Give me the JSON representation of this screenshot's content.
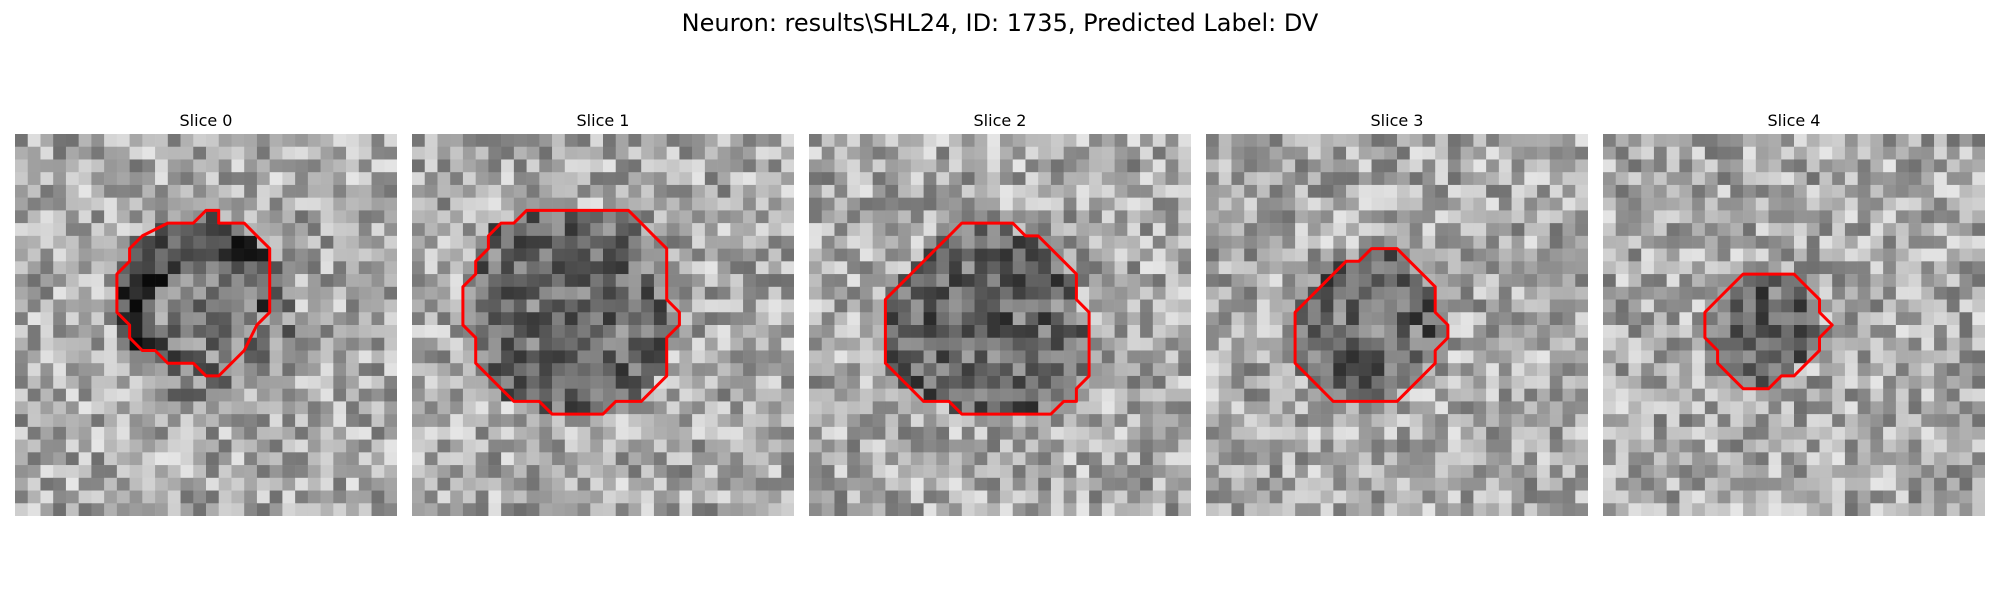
{
  "figure": {
    "title": "Neuron: results\\SHL24, ID: 1735, Predicted Label: DV"
  },
  "panels": [
    {
      "title": "Slice 0",
      "contour": [
        [
          16,
          7
        ],
        [
          18,
          7
        ],
        [
          19,
          8
        ],
        [
          20,
          9
        ],
        [
          20,
          14
        ],
        [
          19,
          15
        ],
        [
          18,
          17
        ],
        [
          17,
          18
        ],
        [
          16,
          19
        ],
        [
          15,
          19
        ],
        [
          14,
          18
        ],
        [
          12,
          18
        ],
        [
          11,
          17
        ],
        [
          10,
          17
        ],
        [
          9,
          16
        ],
        [
          9,
          15
        ],
        [
          8,
          14
        ],
        [
          8,
          11
        ],
        [
          9,
          10
        ],
        [
          9,
          9
        ],
        [
          10,
          8
        ],
        [
          12,
          7
        ],
        [
          14,
          7
        ],
        [
          15,
          6
        ],
        [
          16,
          6
        ]
      ],
      "dark_mask_seed": 0
    },
    {
      "title": "Slice 1",
      "contour": [
        [
          11,
          6
        ],
        [
          13,
          6
        ],
        [
          17,
          6
        ],
        [
          18,
          7
        ],
        [
          19,
          8
        ],
        [
          20,
          9
        ],
        [
          20,
          13
        ],
        [
          21,
          14
        ],
        [
          21,
          15
        ],
        [
          20,
          16
        ],
        [
          20,
          19
        ],
        [
          19,
          20
        ],
        [
          18,
          21
        ],
        [
          16,
          21
        ],
        [
          15,
          22
        ],
        [
          11,
          22
        ],
        [
          10,
          21
        ],
        [
          8,
          21
        ],
        [
          7,
          20
        ],
        [
          6,
          19
        ],
        [
          5,
          18
        ],
        [
          5,
          16
        ],
        [
          4,
          15
        ],
        [
          4,
          12
        ],
        [
          5,
          11
        ],
        [
          5,
          10
        ],
        [
          6,
          9
        ],
        [
          6,
          8
        ],
        [
          7,
          7
        ],
        [
          8,
          7
        ],
        [
          9,
          6
        ]
      ],
      "dark_mask_seed": 1
    },
    {
      "title": "Slice 2",
      "contour": [
        [
          12,
          7
        ],
        [
          16,
          7
        ],
        [
          17,
          8
        ],
        [
          18,
          8
        ],
        [
          19,
          9
        ],
        [
          20,
          10
        ],
        [
          21,
          11
        ],
        [
          21,
          13
        ],
        [
          22,
          14
        ],
        [
          22,
          19
        ],
        [
          21,
          20
        ],
        [
          21,
          21
        ],
        [
          20,
          21
        ],
        [
          19,
          22
        ],
        [
          12,
          22
        ],
        [
          11,
          21
        ],
        [
          9,
          21
        ],
        [
          8,
          20
        ],
        [
          7,
          19
        ],
        [
          6,
          18
        ],
        [
          6,
          13
        ],
        [
          7,
          12
        ],
        [
          8,
          11
        ],
        [
          9,
          10
        ],
        [
          10,
          9
        ],
        [
          11,
          8
        ]
      ],
      "dark_mask_seed": 2
    },
    {
      "title": "Slice 3",
      "contour": [
        [
          13,
          9
        ],
        [
          15,
          9
        ],
        [
          16,
          10
        ],
        [
          17,
          11
        ],
        [
          18,
          12
        ],
        [
          18,
          14
        ],
        [
          19,
          15
        ],
        [
          19,
          16
        ],
        [
          18,
          17
        ],
        [
          18,
          18
        ],
        [
          17,
          19
        ],
        [
          16,
          20
        ],
        [
          15,
          21
        ],
        [
          10,
          21
        ],
        [
          9,
          20
        ],
        [
          8,
          19
        ],
        [
          7,
          18
        ],
        [
          7,
          14
        ],
        [
          8,
          13
        ],
        [
          9,
          12
        ],
        [
          10,
          11
        ],
        [
          11,
          10
        ],
        [
          12,
          10
        ]
      ],
      "dark_mask_seed": 3
    },
    {
      "title": "Slice 4",
      "contour": [
        [
          12,
          11
        ],
        [
          15,
          11
        ],
        [
          16,
          12
        ],
        [
          17,
          13
        ],
        [
          17,
          14
        ],
        [
          18,
          15
        ],
        [
          17,
          16
        ],
        [
          17,
          17
        ],
        [
          16,
          18
        ],
        [
          15,
          19
        ],
        [
          14,
          19
        ],
        [
          13,
          20
        ],
        [
          11,
          20
        ],
        [
          10,
          19
        ],
        [
          9,
          18
        ],
        [
          9,
          17
        ],
        [
          8,
          16
        ],
        [
          8,
          14
        ],
        [
          9,
          13
        ],
        [
          10,
          12
        ],
        [
          11,
          11
        ]
      ],
      "dark_mask_seed": 4
    }
  ],
  "colors": {
    "contour": "#ff0000"
  }
}
